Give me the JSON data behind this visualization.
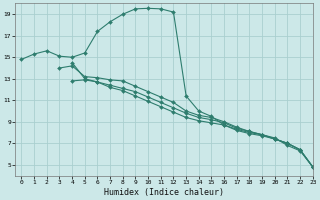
{
  "xlabel": "Humidex (Indice chaleur)",
  "bg_color": "#cce8e8",
  "grid_color": "#aacfcf",
  "line_color": "#2e7d6e",
  "xlim": [
    -0.5,
    23
  ],
  "ylim": [
    4,
    20
  ],
  "xticks": [
    0,
    1,
    2,
    3,
    4,
    5,
    6,
    7,
    8,
    9,
    10,
    11,
    12,
    13,
    14,
    15,
    16,
    17,
    18,
    19,
    20,
    21,
    22,
    23
  ],
  "yticks": [
    5,
    7,
    9,
    11,
    13,
    15,
    17,
    19
  ],
  "curve1_x": [
    0,
    1,
    2,
    3,
    4,
    5,
    6,
    7,
    8,
    9,
    10,
    11,
    12,
    13,
    14,
    15,
    16,
    17,
    18,
    19,
    20,
    21,
    22,
    23
  ],
  "curve1_y": [
    14.8,
    15.3,
    15.6,
    15.1,
    15.0,
    15.4,
    17.4,
    18.3,
    19.0,
    19.5,
    19.55,
    19.5,
    19.2,
    11.4,
    10.0,
    9.5,
    8.7,
    8.3,
    8.0,
    7.8,
    7.5,
    6.8,
    6.3,
    4.8
  ],
  "curve2_x": [
    3,
    4,
    5,
    6,
    7,
    8,
    9,
    10,
    11,
    12,
    13,
    14,
    15,
    16,
    17,
    18,
    19,
    20,
    21,
    22,
    23
  ],
  "curve2_y": [
    14.0,
    14.2,
    13.2,
    13.1,
    12.9,
    12.8,
    12.3,
    11.8,
    11.3,
    10.8,
    10.0,
    9.6,
    9.4,
    9.0,
    8.5,
    8.1,
    7.8,
    7.4,
    7.0,
    6.4,
    4.8
  ],
  "curve3_x": [
    4,
    5,
    6,
    7,
    8,
    9,
    10,
    11,
    12,
    13,
    14,
    15,
    16,
    17,
    18,
    19,
    20,
    21,
    22,
    23
  ],
  "curve3_y": [
    12.8,
    12.9,
    12.7,
    12.4,
    12.1,
    11.8,
    11.3,
    10.8,
    10.3,
    9.8,
    9.4,
    9.2,
    8.9,
    8.4,
    8.1,
    7.8,
    7.4,
    7.0,
    6.4,
    4.8
  ],
  "curve4_x": [
    4,
    5,
    6,
    7,
    8,
    9,
    10,
    11,
    12,
    13,
    14,
    15,
    16,
    17,
    18,
    19,
    20,
    21,
    22,
    23
  ],
  "curve4_y": [
    14.5,
    13.0,
    12.7,
    12.2,
    11.9,
    11.4,
    10.9,
    10.4,
    9.9,
    9.4,
    9.1,
    8.9,
    8.7,
    8.2,
    7.9,
    7.7,
    7.4,
    7.0,
    6.4,
    4.8
  ]
}
